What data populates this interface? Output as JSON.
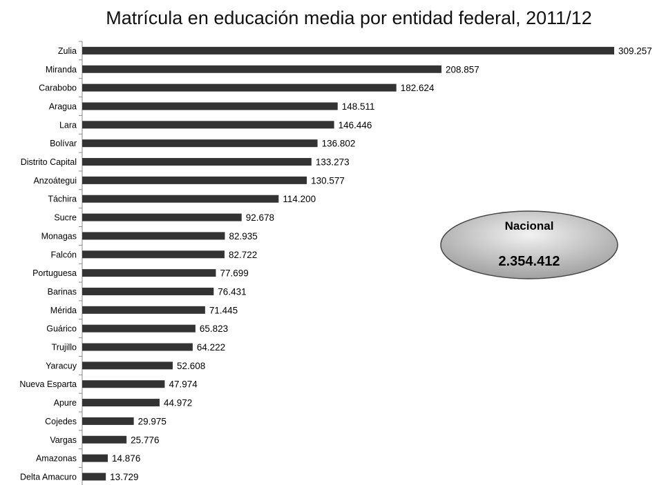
{
  "chart_data": {
    "type": "bar",
    "orientation": "horizontal",
    "title": "Matrícula en educación media por entidad federal, 2011/12",
    "categories": [
      "Zulia",
      "Miranda",
      "Carabobo",
      "Aragua",
      "Lara",
      "Bolívar",
      "Distrito Capital",
      "Anzoátegui",
      "Táchira",
      "Sucre",
      "Monagas",
      "Falcón",
      "Portuguesa",
      "Barinas",
      "Mérida",
      "Guárico",
      "Trujillo",
      "Yaracuy",
      "Nueva Esparta",
      "Apure",
      "Cojedes",
      "Vargas",
      "Amazonas",
      "Delta Amacuro"
    ],
    "values": [
      309257,
      208857,
      182624,
      148511,
      146446,
      136802,
      133273,
      130577,
      114200,
      92678,
      82935,
      82722,
      77699,
      76431,
      71445,
      65823,
      64222,
      52608,
      47974,
      44972,
      29975,
      25776,
      14876,
      13729
    ],
    "value_labels": [
      "309.257",
      "208.857",
      "182.624",
      "148.511",
      "146.446",
      "136.802",
      "133.273",
      "130.577",
      "114.200",
      "92.678",
      "82.935",
      "82.722",
      "77.699",
      "76.431",
      "71.445",
      "65.823",
      "64.222",
      "52.608",
      "47.974",
      "44.972",
      "29.975",
      "25.776",
      "14.876",
      "13.729"
    ],
    "xlim": [
      0,
      309257
    ],
    "grid": false,
    "legend": "none",
    "bar_color": "#333333",
    "annotation": {
      "label": "Nacional",
      "value": "2.354.412"
    }
  }
}
